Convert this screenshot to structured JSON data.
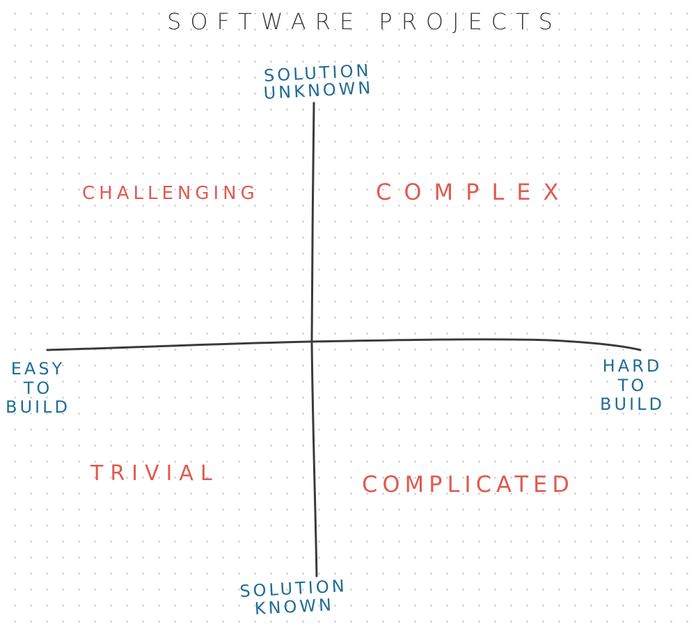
{
  "title": "SOFTWARE PROJECTS",
  "axes": {
    "top": [
      "SOLUTION",
      "UNKNOWN"
    ],
    "bottom": [
      "SOLUTION",
      "KNOWN"
    ],
    "left": [
      "EASY",
      "TO",
      "BUILD"
    ],
    "right": [
      "HARD",
      "TO",
      "BUILD"
    ]
  },
  "quadrants": {
    "top_left": "CHALLENGING",
    "top_right": "COMPLEX",
    "bottom_left": "TRIVIAL",
    "bottom_right": "COMPLICATED"
  },
  "colors": {
    "title": "#3a3a3a",
    "axis_label": "#1f6c95",
    "quadrant_label": "#e05a50",
    "axis_line": "#3a3a3a",
    "grid_dot": "#c9c9c9"
  }
}
